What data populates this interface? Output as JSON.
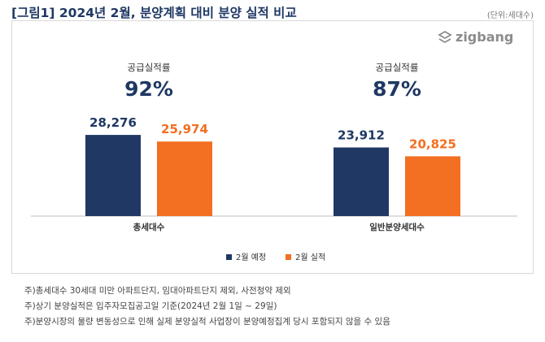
{
  "header": {
    "title": "[그림1] 2024년 2월, 분양계획 대비 분양 실적 비교",
    "unit": "(단위:세대수)"
  },
  "logo": {
    "text": "zigbang"
  },
  "chart_data": {
    "type": "bar",
    "categories": [
      "총세대수",
      "일반분양세대수"
    ],
    "series": [
      {
        "name": "2월 예정",
        "color": "#1f3864",
        "values": [
          28276,
          23912
        ],
        "labels": [
          "28,276",
          "23,912"
        ]
      },
      {
        "name": "2월 실적",
        "color": "#f36f21",
        "values": [
          25974,
          20825
        ],
        "labels": [
          "25,974",
          "20,825"
        ]
      }
    ],
    "ylim": [
      0,
      30000
    ],
    "annotations": [
      {
        "label": "공급실적률",
        "value": "92%"
      },
      {
        "label": "공급실적률",
        "value": "87%"
      }
    ],
    "legend": "bottom-center",
    "grid": false
  },
  "notes": [
    "주)총세대수 30세대 미만 아파트단지, 임대아파트단지 제외, 사전청약 제외",
    "주)상기 분양실적은 입주자모집공고일 기준(2024년 2월 1일 ~ 29일)",
    "주)분양시장의 물량 변동성으로 인해 실제 분양실적 사업장이 분양예정집계 당시 포함되지 않을 수 있음"
  ]
}
